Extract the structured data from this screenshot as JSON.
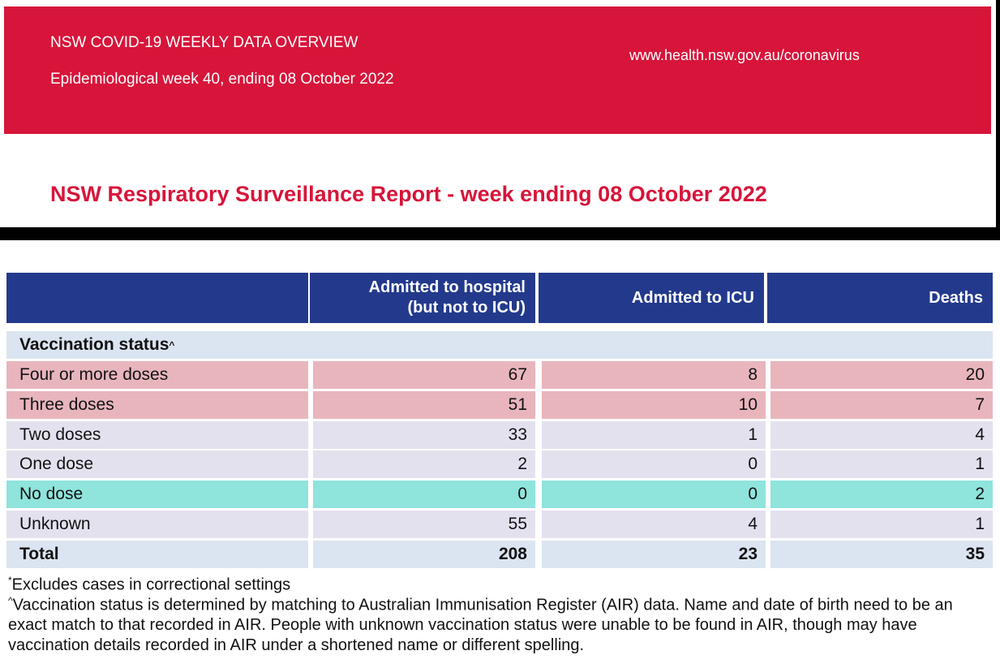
{
  "header": {
    "overview": "NSW COVID-19 WEEKLY DATA OVERVIEW",
    "week": "Epidemiological week 40, ending 08 October 2022",
    "url": "www.health.nsw.gov.au/coronavirus",
    "title": "NSW Respiratory Surveillance Report - week ending 08 October 2022"
  },
  "table": {
    "columns": [
      "Admitted to hospital\n(but not to ICU)",
      "Admitted to ICU",
      "Deaths"
    ],
    "section_label": "Vaccination status",
    "section_mark": "^",
    "rows": [
      {
        "label": "Four or more doses",
        "values": [
          67,
          8,
          20
        ],
        "highlight": "#e8b5bd"
      },
      {
        "label": "Three doses",
        "values": [
          51,
          10,
          7
        ],
        "highlight": "#e8b5bd"
      },
      {
        "label": "Two doses",
        "values": [
          33,
          1,
          4
        ],
        "highlight": "#e4e1ef"
      },
      {
        "label": "One dose",
        "values": [
          2,
          0,
          1
        ],
        "highlight": "#e4e1ef"
      },
      {
        "label": "No dose",
        "values": [
          0,
          0,
          2
        ],
        "highlight": "#8fe4dc"
      },
      {
        "label": "Unknown",
        "values": [
          55,
          4,
          1
        ],
        "highlight": "#e4e1ef"
      }
    ],
    "total": {
      "label": "Total",
      "values": [
        208,
        23,
        35
      ]
    }
  },
  "notes": [
    {
      "mark": "*",
      "text": "Excludes cases in correctional settings"
    },
    {
      "mark": "^",
      "text": "Vaccination status is determined by matching to Australian Immunisation Register (AIR) data. Name and date of birth need to be an exact match to that recorded in AIR. People with unknown vaccination status were unable to be found in AIR, though may have vaccination details recorded in AIR under a shortened name or different spelling."
    }
  ]
}
